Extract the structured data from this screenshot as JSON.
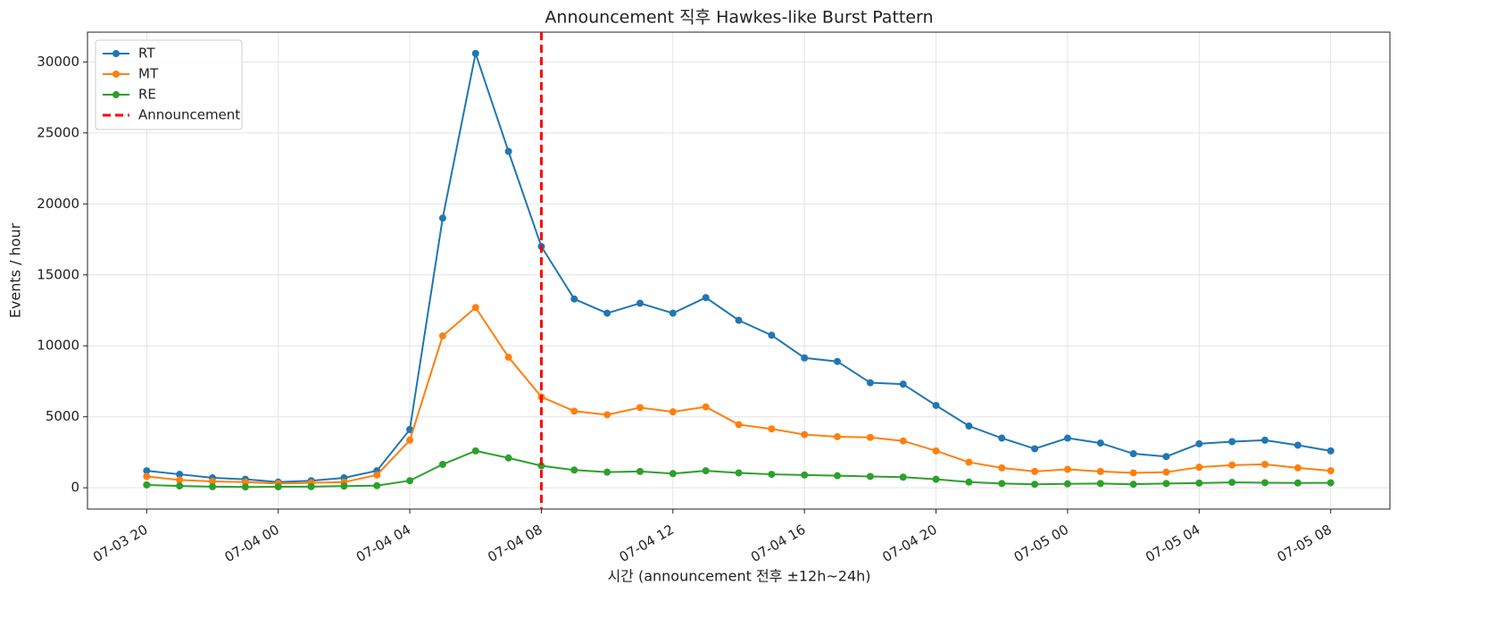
{
  "chart_data": {
    "type": "line",
    "title": "Announcement 직후 Hawkes-like Burst Pattern",
    "x_label": "시간 (announcement 전후 ±12h~24h)",
    "y_label": "Events / hour",
    "categories": [
      "07-03 20",
      null,
      null,
      null,
      "07-04 00",
      null,
      null,
      null,
      "07-04 04",
      null,
      null,
      null,
      "07-04 08",
      null,
      null,
      null,
      "07-04 12",
      null,
      null,
      null,
      "07-04 16",
      null,
      null,
      null,
      "07-04 20",
      null,
      null,
      null,
      "07-05 00",
      null,
      null,
      null,
      "07-05 04",
      null,
      null,
      null,
      "07-05 08"
    ],
    "series": [
      {
        "name": "RT",
        "color": "#1f77b4",
        "values": [
          1200,
          950,
          700,
          600,
          400,
          500,
          700,
          1200,
          4100,
          19000,
          30600,
          23700,
          17000,
          13300,
          12300,
          13000,
          12300,
          13400,
          11800,
          10750,
          9150,
          8900,
          7400,
          7300,
          5800,
          4350,
          3500,
          2750,
          3500,
          3150,
          2400,
          2200,
          3100,
          3250,
          3350,
          3000,
          2600
        ]
      },
      {
        "name": "MT",
        "color": "#ff7f0e",
        "values": [
          800,
          550,
          450,
          400,
          300,
          350,
          400,
          900,
          3350,
          10700,
          12700,
          9200,
          6400,
          5400,
          5150,
          5650,
          5350,
          5700,
          4450,
          4150,
          3750,
          3600,
          3550,
          3300,
          2600,
          1800,
          1400,
          1150,
          1300,
          1150,
          1050,
          1100,
          1450,
          1600,
          1650,
          1400,
          1200
        ]
      },
      {
        "name": "RE",
        "color": "#2ca02c",
        "values": [
          200,
          130,
          80,
          60,
          70,
          80,
          120,
          150,
          500,
          1650,
          2600,
          2100,
          1550,
          1250,
          1100,
          1150,
          1000,
          1200,
          1050,
          950,
          900,
          850,
          800,
          750,
          600,
          400,
          300,
          250,
          280,
          300,
          250,
          300,
          330,
          380,
          360,
          340,
          350
        ]
      }
    ],
    "vline": {
      "name": "Announcement",
      "color": "#ff0000",
      "x": "07-04 08"
    },
    "ylim": [
      -1500,
      32100
    ],
    "yticks": [
      0,
      5000,
      10000,
      15000,
      20000,
      25000,
      30000
    ],
    "grid": true,
    "legend": "upper left"
  }
}
